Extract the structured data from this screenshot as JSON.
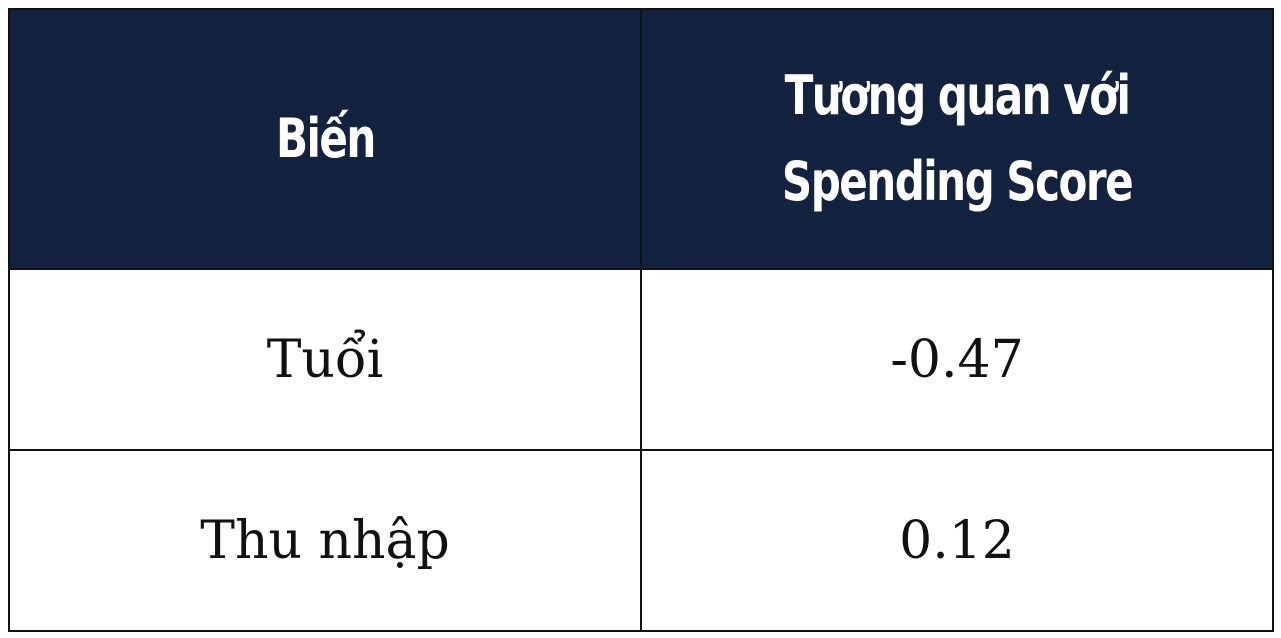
{
  "table": {
    "headers": [
      "Biến",
      "Tương quan với Spending Score"
    ],
    "rows": [
      [
        "Tuổi",
        "-0.47"
      ],
      [
        "Thu nhập",
        "0.12"
      ]
    ]
  },
  "colors": {
    "header_bg": "#13233f",
    "header_text": "#ffffff",
    "border": "#111111",
    "cell_text": "#111111"
  }
}
